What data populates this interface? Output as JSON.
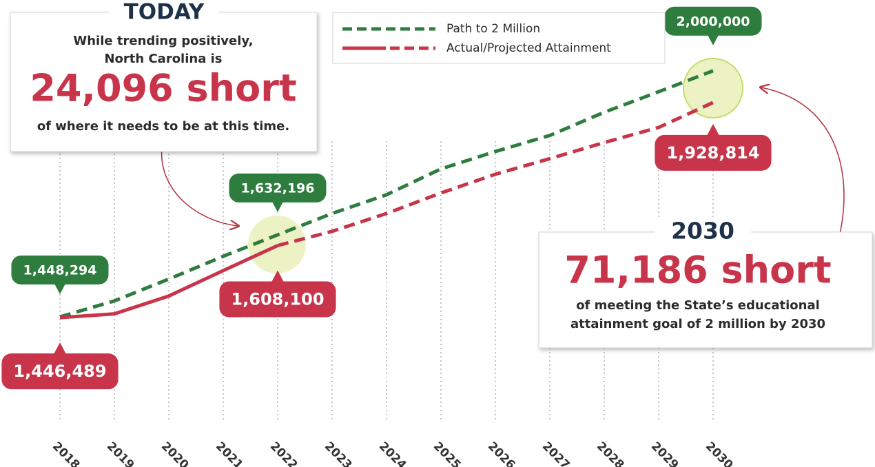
{
  "chart_data": {
    "type": "line",
    "categories": [
      "2018",
      "2019",
      "2020",
      "2021",
      "2022",
      "2023",
      "2024",
      "2025",
      "2026",
      "2027",
      "2028",
      "2029",
      "2030"
    ],
    "series": [
      {
        "name": "Path to 2 Million",
        "color": "#2e7d3e",
        "values": [
          1448294,
          1484000,
          1533000,
          1584000,
          1632196,
          1680000,
          1722000,
          1780000,
          1819000,
          1855000,
          1907000,
          1953000,
          2000000
        ],
        "value_labels": [
          "1,448,294",
          null,
          null,
          null,
          "1,632,196",
          null,
          null,
          null,
          null,
          null,
          null,
          null,
          "2,000,000"
        ]
      },
      {
        "name": "Actual/Projected Attainment",
        "color": "#c8344a",
        "dashed_from": "2022",
        "values": [
          1446489,
          1455000,
          1495000,
          1552000,
          1608100,
          1640000,
          1680000,
          1726000,
          1768000,
          1803000,
          1839000,
          1873000,
          1928814
        ],
        "value_labels": [
          "1,446,489",
          null,
          null,
          null,
          "1,608,100",
          null,
          null,
          null,
          null,
          null,
          null,
          null,
          "1,928,814"
        ]
      }
    ],
    "ylim": [
      1300000,
      2100000
    ],
    "grid": true,
    "annotations": [
      {
        "heading": "TODAY",
        "lines": [
          "While trending positively,",
          "North Carolina is"
        ],
        "highlight": "24,096 short",
        "note": [
          "of where it needs to be at this time."
        ]
      },
      {
        "heading": "2030",
        "lines": [],
        "highlight": "71,186 short",
        "note": [
          "of meeting the State’s educational",
          "attainment goal of 2 million by 2030"
        ]
      }
    ]
  }
}
